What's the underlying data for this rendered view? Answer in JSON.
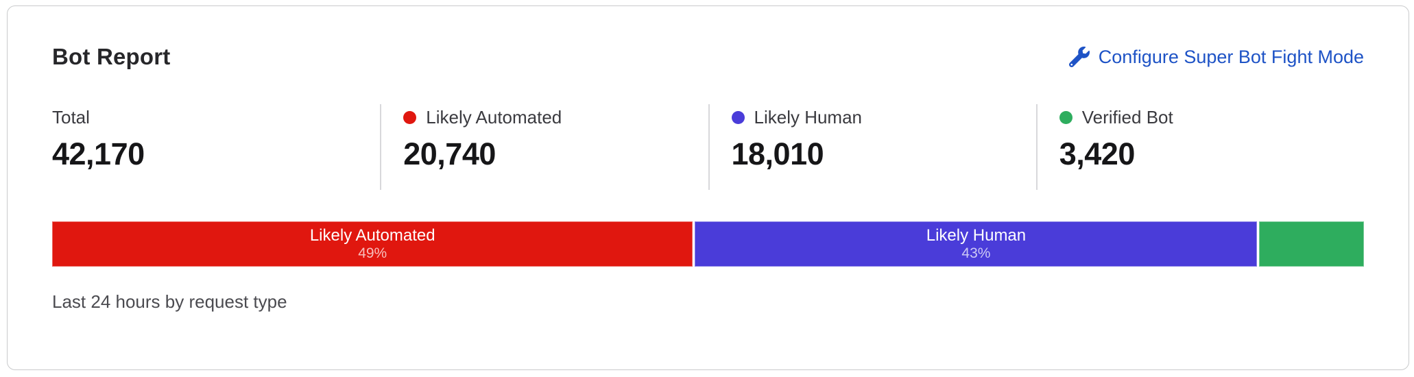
{
  "card": {
    "title": "Bot Report",
    "configure_link": {
      "label": "Configure Super Bot Fight Mode",
      "icon": "wrench-icon",
      "color": "#1e53c6"
    },
    "stats": [
      {
        "label": "Total",
        "value": "42,170"
      },
      {
        "label": "Likely Automated",
        "value": "20,740",
        "dot_color": "#e0170f"
      },
      {
        "label": "Likely Human",
        "value": "18,010",
        "dot_color": "#4a3cd9"
      },
      {
        "label": "Verified Bot",
        "value": "3,420",
        "dot_color": "#2ead5e"
      }
    ],
    "caption": "Last 24 hours by request type"
  },
  "chart_data": {
    "type": "bar",
    "orientation": "horizontal",
    "stacked": true,
    "title": "Bot Report",
    "total": 42170,
    "note": "single proportional stacked bar, last 24 hours by request type",
    "segments": [
      {
        "label": "Likely Automated",
        "value": 20740,
        "percent": 49,
        "percent_label": "49%",
        "color": "#e0170f",
        "show_label": true
      },
      {
        "label": "Likely Human",
        "value": 18010,
        "percent": 43,
        "percent_label": "43%",
        "color": "#4a3cd9",
        "show_label": true
      },
      {
        "label": "Verified Bot",
        "value": 3420,
        "percent": 8,
        "color": "#2ead5e",
        "show_label": false
      }
    ]
  }
}
